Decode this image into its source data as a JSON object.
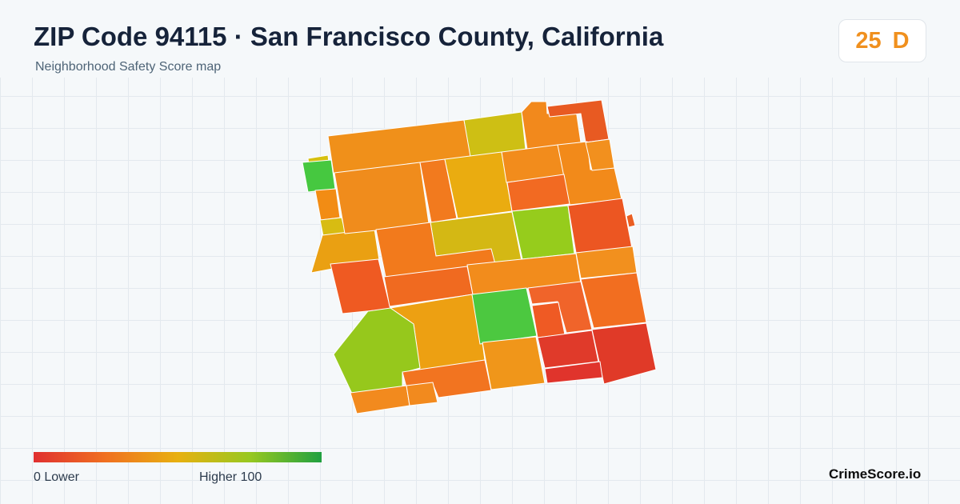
{
  "header": {
    "title": "ZIP Code 94115 · San Francisco County, California",
    "subtitle": "Neighborhood Safety Score map"
  },
  "score": {
    "value": "25",
    "grade": "D",
    "color": "#f0901e"
  },
  "legend": {
    "min_label": "0  Lower",
    "max_label": "Higher  100",
    "min": 0,
    "max": 100,
    "gradient": [
      "#e03030",
      "#f07020",
      "#e8b010",
      "#98c820",
      "#20a040"
    ]
  },
  "brand": "CrimeScore.io",
  "colors": {
    "background": "#f5f8fa",
    "grid": "#e3e9ee",
    "block_border": "#ffffff"
  }
}
